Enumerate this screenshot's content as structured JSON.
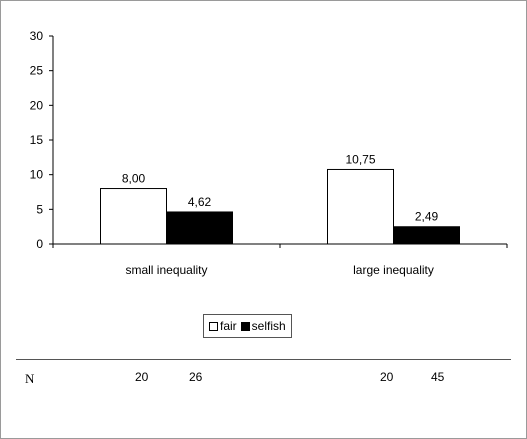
{
  "chart_data": {
    "type": "bar",
    "categories": [
      "small inequality",
      "large inequality"
    ],
    "series": [
      {
        "name": "fair",
        "values": [
          8.0,
          10.75
        ],
        "labels": [
          "8,00",
          "10,75"
        ],
        "color": "#ffffff"
      },
      {
        "name": "selfish",
        "values": [
          4.62,
          2.49
        ],
        "labels": [
          "4,62",
          "2,49"
        ],
        "color": "#000000"
      }
    ],
    "ylim": [
      0,
      30
    ],
    "yticks": [
      "0",
      "5",
      "10",
      "15",
      "20",
      "25",
      "30"
    ],
    "legend": "bottom",
    "grid": false
  },
  "n_table": {
    "label": "N",
    "values": [
      "20",
      "26",
      "20",
      "45"
    ]
  }
}
